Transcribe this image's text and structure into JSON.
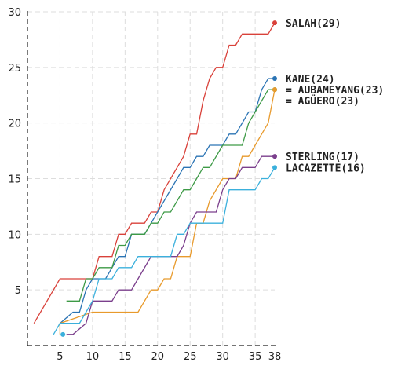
{
  "chart_data": {
    "type": "line",
    "title": "",
    "xlabel": "",
    "ylabel": "",
    "xlim": [
      0,
      38
    ],
    "ylim": [
      0,
      30
    ],
    "x_ticks": [
      5,
      10,
      15,
      20,
      25,
      30,
      35,
      38
    ],
    "y_ticks": [
      5,
      10,
      15,
      20,
      25,
      30
    ],
    "grid": true,
    "series": [
      {
        "name": "SALAH",
        "label": "SALAH(29)",
        "color": "#d9413a",
        "points": [
          [
            1,
            2
          ],
          [
            3,
            4
          ],
          [
            5,
            6
          ],
          [
            10,
            6
          ],
          [
            11,
            8
          ],
          [
            13,
            8
          ],
          [
            14,
            10
          ],
          [
            15,
            10
          ],
          [
            16,
            11
          ],
          [
            18,
            11
          ],
          [
            19,
            12
          ],
          [
            20,
            12
          ],
          [
            21,
            14
          ],
          [
            24,
            17
          ],
          [
            25,
            19
          ],
          [
            26,
            19
          ],
          [
            27,
            22
          ],
          [
            28,
            24
          ],
          [
            29,
            25
          ],
          [
            30,
            25
          ],
          [
            31,
            27
          ],
          [
            32,
            27
          ],
          [
            33,
            28
          ],
          [
            37,
            28
          ],
          [
            38,
            29
          ]
        ]
      },
      {
        "name": "KANE",
        "label": "KANE(24)",
        "color": "#2b74b4",
        "points": [
          [
            5,
            2
          ],
          [
            7,
            3
          ],
          [
            8,
            3
          ],
          [
            9,
            5
          ],
          [
            10,
            6
          ],
          [
            12,
            6
          ],
          [
            14,
            8
          ],
          [
            15,
            8
          ],
          [
            16,
            10
          ],
          [
            18,
            10
          ],
          [
            19,
            11
          ],
          [
            20,
            12
          ],
          [
            21,
            13
          ],
          [
            23,
            15
          ],
          [
            24,
            16
          ],
          [
            25,
            16
          ],
          [
            26,
            17
          ],
          [
            27,
            17
          ],
          [
            28,
            18
          ],
          [
            30,
            18
          ],
          [
            31,
            19
          ],
          [
            32,
            19
          ],
          [
            33,
            20
          ],
          [
            34,
            21
          ],
          [
            35,
            21
          ],
          [
            36,
            23
          ],
          [
            37,
            24
          ],
          [
            38,
            24
          ]
        ]
      },
      {
        "name": "AUBAMEYANG",
        "label": "= AUBAMEYANG(23)",
        "color": "#3d9a46",
        "points": [
          [
            6,
            4
          ],
          [
            8,
            4
          ],
          [
            9,
            6
          ],
          [
            10,
            6
          ],
          [
            11,
            7
          ],
          [
            13,
            7
          ],
          [
            14,
            9
          ],
          [
            15,
            9
          ],
          [
            16,
            10
          ],
          [
            18,
            10
          ],
          [
            19,
            11
          ],
          [
            20,
            11
          ],
          [
            21,
            12
          ],
          [
            22,
            12
          ],
          [
            23,
            13
          ],
          [
            24,
            14
          ],
          [
            25,
            14
          ],
          [
            26,
            15
          ],
          [
            27,
            16
          ],
          [
            28,
            16
          ],
          [
            29,
            17
          ],
          [
            30,
            18
          ],
          [
            33,
            18
          ],
          [
            34,
            20
          ],
          [
            35,
            21
          ],
          [
            36,
            22
          ],
          [
            37,
            23
          ],
          [
            38,
            23
          ]
        ]
      },
      {
        "name": "AGÜERO",
        "label": "= AGÜERO(23)",
        "color": "#e89a2c",
        "points": [
          [
            5,
            1
          ],
          [
            5,
            2
          ],
          [
            10,
            3
          ],
          [
            17,
            3
          ],
          [
            18,
            4
          ],
          [
            19,
            5
          ],
          [
            20,
            5
          ],
          [
            21,
            6
          ],
          [
            22,
            6
          ],
          [
            23,
            8
          ],
          [
            25,
            8
          ],
          [
            26,
            11
          ],
          [
            27,
            11
          ],
          [
            28,
            13
          ],
          [
            30,
            15
          ],
          [
            32,
            15
          ],
          [
            33,
            17
          ],
          [
            34,
            17
          ],
          [
            35,
            18
          ],
          [
            36,
            19
          ],
          [
            37,
            20
          ],
          [
            38,
            23
          ]
        ]
      },
      {
        "name": "STERLING",
        "label": "STERLING(17)",
        "color": "#7b3f8c",
        "points": [
          [
            6,
            1
          ],
          [
            7,
            1
          ],
          [
            9,
            2
          ],
          [
            10,
            4
          ],
          [
            13,
            4
          ],
          [
            14,
            5
          ],
          [
            16,
            5
          ],
          [
            17,
            6
          ],
          [
            19,
            8
          ],
          [
            23,
            8
          ],
          [
            24,
            9
          ],
          [
            25,
            11
          ],
          [
            26,
            12
          ],
          [
            29,
            12
          ],
          [
            30,
            14
          ],
          [
            31,
            15
          ],
          [
            32,
            15
          ],
          [
            33,
            16
          ],
          [
            35,
            16
          ],
          [
            36,
            17
          ],
          [
            37,
            17
          ],
          [
            38,
            17
          ]
        ]
      },
      {
        "name": "LACAZETTE",
        "label": "LACAZETTE(16)",
        "color": "#3bb0dc",
        "points": [
          [
            4,
            1
          ],
          [
            5,
            2
          ],
          [
            8,
            2
          ],
          [
            9,
            3
          ],
          [
            10,
            4
          ],
          [
            11,
            6
          ],
          [
            13,
            6
          ],
          [
            14,
            7
          ],
          [
            16,
            7
          ],
          [
            17,
            8
          ],
          [
            22,
            8
          ],
          [
            23,
            10
          ],
          [
            24,
            10
          ],
          [
            25,
            11
          ],
          [
            30,
            11
          ],
          [
            31,
            14
          ],
          [
            35,
            14
          ],
          [
            36,
            15
          ],
          [
            37,
            15
          ],
          [
            38,
            16
          ]
        ]
      }
    ]
  }
}
